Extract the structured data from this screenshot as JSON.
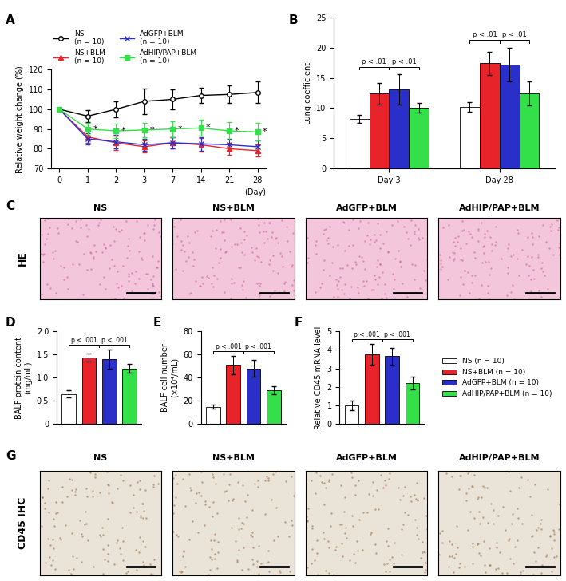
{
  "chart_data": [
    {
      "panel": "A",
      "type": "line",
      "x_label": "(Day)",
      "y_label": "Relative weight change (%)",
      "categories": [
        "0",
        "1",
        "2",
        "3",
        "7",
        "14",
        "21",
        "28"
      ],
      "ylim": [
        70,
        120
      ],
      "yticks": [
        70,
        80,
        90,
        100,
        110,
        120
      ],
      "series": [
        {
          "name": "NS",
          "n_label": "(n = 10)",
          "color": "#000000",
          "marker": "circle_open",
          "values": [
            100,
            96.5,
            100,
            104,
            105,
            107,
            107.5,
            108.5
          ],
          "errors": [
            0,
            3,
            4,
            6.5,
            5,
            4,
            4.5,
            5.5
          ]
        },
        {
          "name": "NS+BLM",
          "n_label": "(n = 10)",
          "color": "#e8232a",
          "marker": "triangle",
          "values": [
            100,
            86,
            83,
            81,
            83,
            82,
            80,
            79
          ],
          "errors": [
            0,
            3,
            3.5,
            3,
            3,
            3.5,
            3,
            3
          ]
        },
        {
          "name": "AdGFP+BLM",
          "n_label": "(n = 10)",
          "color": "#2b2fc9",
          "marker": "x",
          "values": [
            100,
            85,
            83.5,
            82,
            83,
            82.5,
            82,
            81
          ],
          "errors": [
            0,
            3,
            3.5,
            3,
            3,
            3.5,
            3,
            3
          ]
        },
        {
          "name": "AdHIP/PAP+BLM",
          "n_label": "(n = 10)",
          "color": "#33e04a",
          "marker": "square",
          "values": [
            100,
            90,
            89,
            89.5,
            90,
            90.5,
            89,
            88.5
          ],
          "errors": [
            0,
            3,
            3.5,
            3.5,
            4,
            4,
            4.5,
            4.5
          ],
          "significance": [
            null,
            "*",
            "*",
            "*",
            "*",
            "*",
            "*",
            "*"
          ]
        }
      ]
    },
    {
      "panel": "B",
      "type": "bar",
      "y_label": "Lung coefficient",
      "categories": [
        "Day 3",
        "Day 28"
      ],
      "ylim": [
        0,
        25
      ],
      "yticks": [
        0,
        5,
        10,
        15,
        20,
        25
      ],
      "series": [
        {
          "color": "#ffffff",
          "values": [
            8.2,
            10.2
          ],
          "errors": [
            0.6,
            0.8
          ]
        },
        {
          "color": "#e8232a",
          "values": [
            12.4,
            17.4
          ],
          "errors": [
            1.8,
            1.9
          ]
        },
        {
          "color": "#2b2fc9",
          "values": [
            13.1,
            17.2
          ],
          "errors": [
            2.5,
            2.8
          ]
        },
        {
          "color": "#33e04a",
          "values": [
            10.0,
            12.4
          ],
          "errors": [
            0.8,
            2.0
          ]
        }
      ],
      "comparisons": [
        [
          {
            "from": [
              0
            ],
            "to": [
              1,
              2
            ],
            "text": "p < .01"
          },
          {
            "from": [
              1,
              2
            ],
            "to": [
              3
            ],
            "text": "p < .01"
          }
        ],
        [
          {
            "from": [
              0
            ],
            "to": [
              1,
              2
            ],
            "text": "p < .01"
          },
          {
            "from": [
              1,
              2
            ],
            "to": [
              3
            ],
            "text": "p < .01"
          }
        ]
      ]
    },
    {
      "panel": "D",
      "type": "bar",
      "y_label": "BALF protein content\n(mg/mL)",
      "tick_labels": "y",
      "categories": [
        null,
        null,
        null,
        null
      ],
      "values": [
        0.65,
        1.43,
        1.4,
        1.2
      ],
      "errors": [
        0.08,
        0.08,
        0.2,
        0.1
      ],
      "colors": [
        "#ffffff",
        "#e8232a",
        "#2b2fc9",
        "#33e04a"
      ],
      "ylim": [
        0,
        2
      ],
      "yticks": [
        0,
        0.5,
        {
          "value": 1,
          "label": "1.0"
        },
        1.5,
        {
          "value": 2,
          "label": "2.0"
        }
      ],
      "comparisons": [
        {
          "from": [
            0
          ],
          "to": [
            1,
            2
          ],
          "text": "p < .001"
        },
        {
          "from": [
            1,
            2
          ],
          "to": [
            3
          ],
          "text": "p < .001"
        }
      ]
    },
    {
      "panel": "E",
      "type": "bar",
      "y_label": "BALF cell number\n(×10⁴/mL)",
      "tick_labels": "y",
      "categories": [
        null,
        null,
        null,
        null
      ],
      "values": [
        15,
        51,
        48,
        29
      ],
      "errors": [
        1.5,
        8,
        7,
        3.5
      ],
      "colors": [
        "#ffffff",
        "#e8232a",
        "#2b2fc9",
        "#33e04a"
      ],
      "ylim": [
        0,
        80
      ],
      "yticks": [
        0,
        20,
        40,
        60,
        80
      ],
      "comparisons": [
        {
          "from": [
            0
          ],
          "to": [
            1,
            2
          ],
          "text": "p < .001"
        },
        {
          "from": [
            1,
            2
          ],
          "to": [
            3
          ],
          "text": "p < .001"
        }
      ]
    },
    {
      "panel": "F",
      "type": "bar",
      "y_label": "Relative CD45 mRNA level",
      "tick_labels": "y",
      "categories": [
        null,
        null,
        null,
        null
      ],
      "values": [
        1.0,
        3.75,
        3.65,
        2.2
      ],
      "errors": [
        0.25,
        0.55,
        0.45,
        0.35
      ],
      "colors": [
        "#ffffff",
        "#e8232a",
        "#2b2fc9",
        "#33e04a"
      ],
      "ylim": [
        0,
        5
      ],
      "yticks": [
        0,
        1,
        2,
        3,
        4,
        5
      ],
      "comparisons": [
        {
          "from": [
            0
          ],
          "to": [
            1,
            2
          ],
          "text": "p < .001"
        },
        {
          "from": [
            1,
            2
          ],
          "to": [
            3
          ],
          "text": "p < .001"
        }
      ]
    }
  ],
  "shared_legend": {
    "labels": [
      "NS (n = 10)",
      "NS+BLM (n = 10)",
      "AdGFP+BLM (n = 10)",
      "AdHIP/PAP+BLM (n = 10)"
    ],
    "colors": [
      "#ffffff",
      "#e8232a",
      "#2b2fc9",
      "#33e04a"
    ]
  },
  "images": [
    {
      "panel": "C",
      "row_label": "HE",
      "titles": [
        "NS",
        "NS+BLM",
        "AdGFP+BLM",
        "AdHIP/PAP+BLM"
      ]
    },
    {
      "panel": "G",
      "row_label": "CD45 IHC",
      "titles": [
        "NS",
        "NS+BLM",
        "AdGFP+BLM",
        "AdHIP/PAP+BLM"
      ]
    }
  ]
}
